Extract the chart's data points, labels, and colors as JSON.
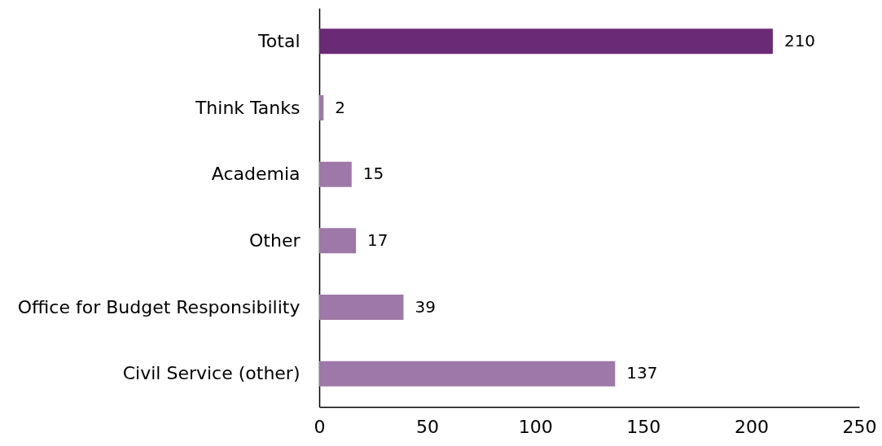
{
  "chart_data": {
    "type": "bar",
    "orientation": "horizontal",
    "categories": [
      "Total",
      "Think Tanks",
      "Academia",
      "Other",
      "Office for Budget Responsibility",
      "Civil Service (other)"
    ],
    "values": [
      210,
      2,
      15,
      17,
      39,
      137
    ],
    "colors": [
      "#6b2a75",
      "#9e78a8",
      "#9e78a8",
      "#9e78a8",
      "#9e78a8",
      "#9e78a8"
    ],
    "xlim": [
      0,
      250
    ],
    "xticks": [
      0,
      50,
      100,
      150,
      200,
      250
    ],
    "grid": false,
    "data_labels": true
  }
}
